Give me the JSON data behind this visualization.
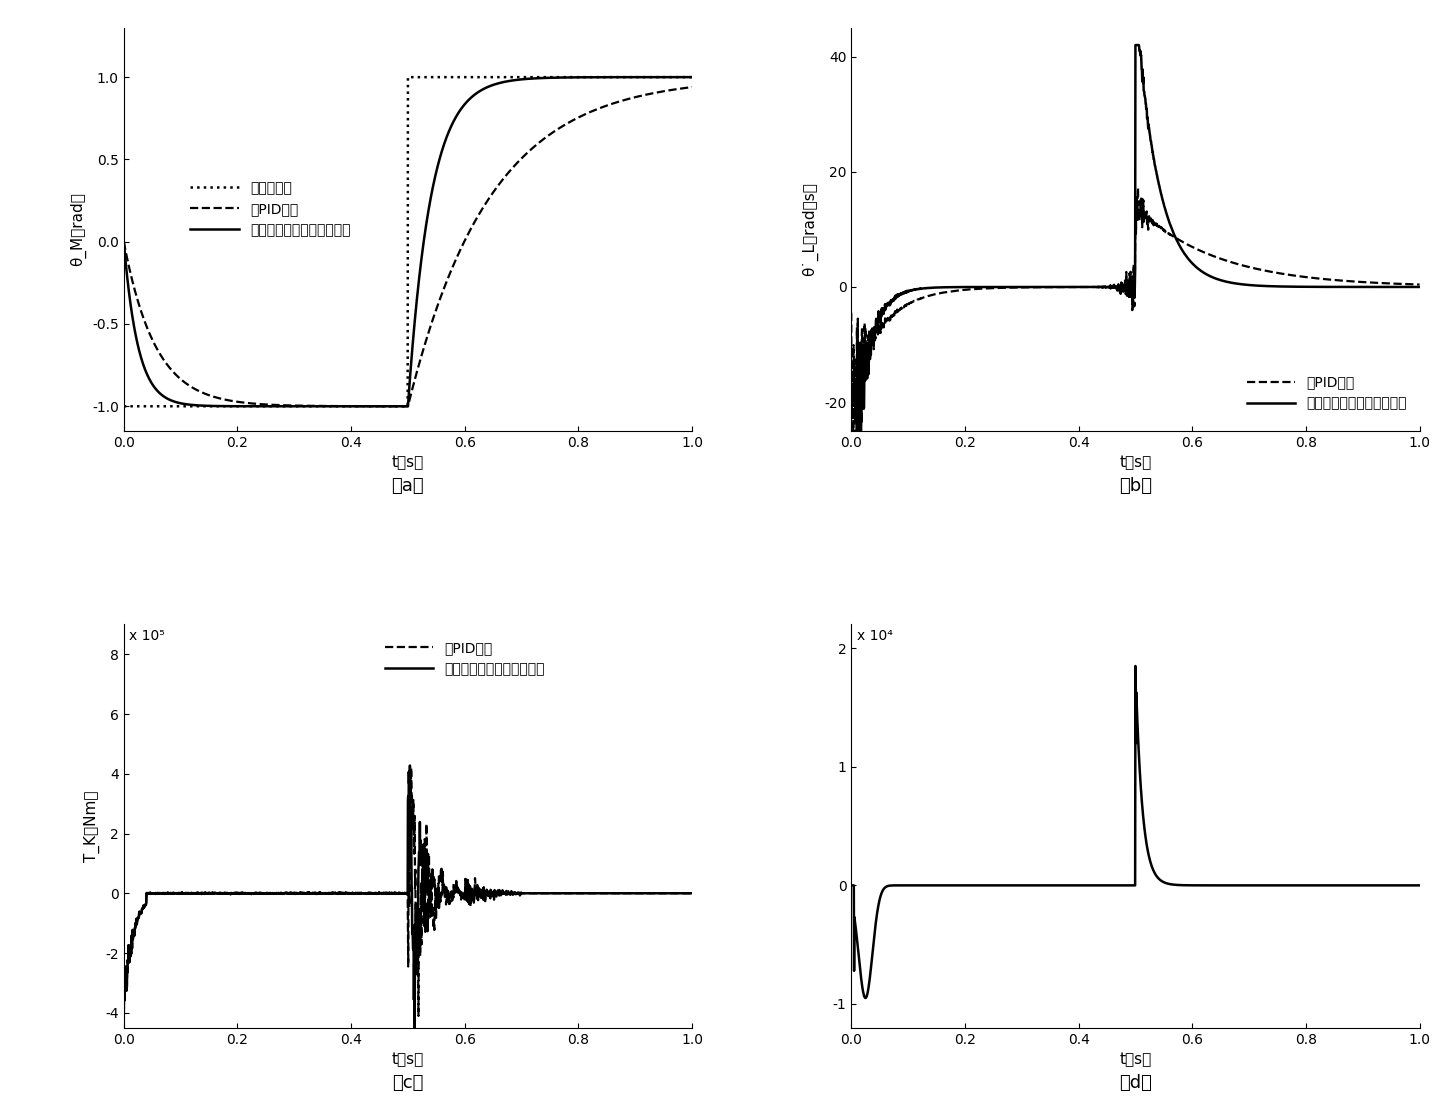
{
  "figsize": [
    14.56,
    11.11
  ],
  "dpi": 100,
  "ax_a": {
    "ylim": [
      -1.15,
      1.3
    ],
    "xlim": [
      0,
      1
    ],
    "yticks": [
      -1,
      -0.5,
      0,
      0.5,
      1
    ],
    "xticks": [
      0,
      0.2,
      0.4,
      0.6,
      0.8,
      1
    ],
    "label": "（a）"
  },
  "ax_b": {
    "ylim": [
      -25,
      45
    ],
    "xlim": [
      0,
      1
    ],
    "yticks": [
      -20,
      0,
      20,
      40
    ],
    "xticks": [
      0,
      0.2,
      0.4,
      0.6,
      0.8,
      1
    ],
    "label": "（b）"
  },
  "ax_c": {
    "ylim": [
      -4.5,
      9.0
    ],
    "xlim": [
      0,
      1
    ],
    "yticks": [
      -4,
      -2,
      0,
      2,
      4,
      6,
      8
    ],
    "xticks": [
      0,
      0.2,
      0.4,
      0.6,
      0.8,
      1
    ],
    "label": "（c）",
    "exp": "x 10⁵"
  },
  "ax_d": {
    "ylim": [
      -1.2,
      2.2
    ],
    "xlim": [
      0,
      1
    ],
    "yticks": [
      -1,
      0,
      1,
      2
    ],
    "xticks": [
      0,
      0.2,
      0.4,
      0.6,
      0.8,
      1
    ],
    "label": "（d）",
    "exp": "x 10⁴"
  },
  "legend_ref": "：期望转角",
  "legend_pid": "：PID控制",
  "legend_back": "：全局反步自适应滑模控制",
  "ylabel_a": "θ_M（rad）",
  "ylabel_b": "θ˙_L（rad／s）",
  "ylabel_c": "T_K（Nm）",
  "xlabel": "t（s）"
}
